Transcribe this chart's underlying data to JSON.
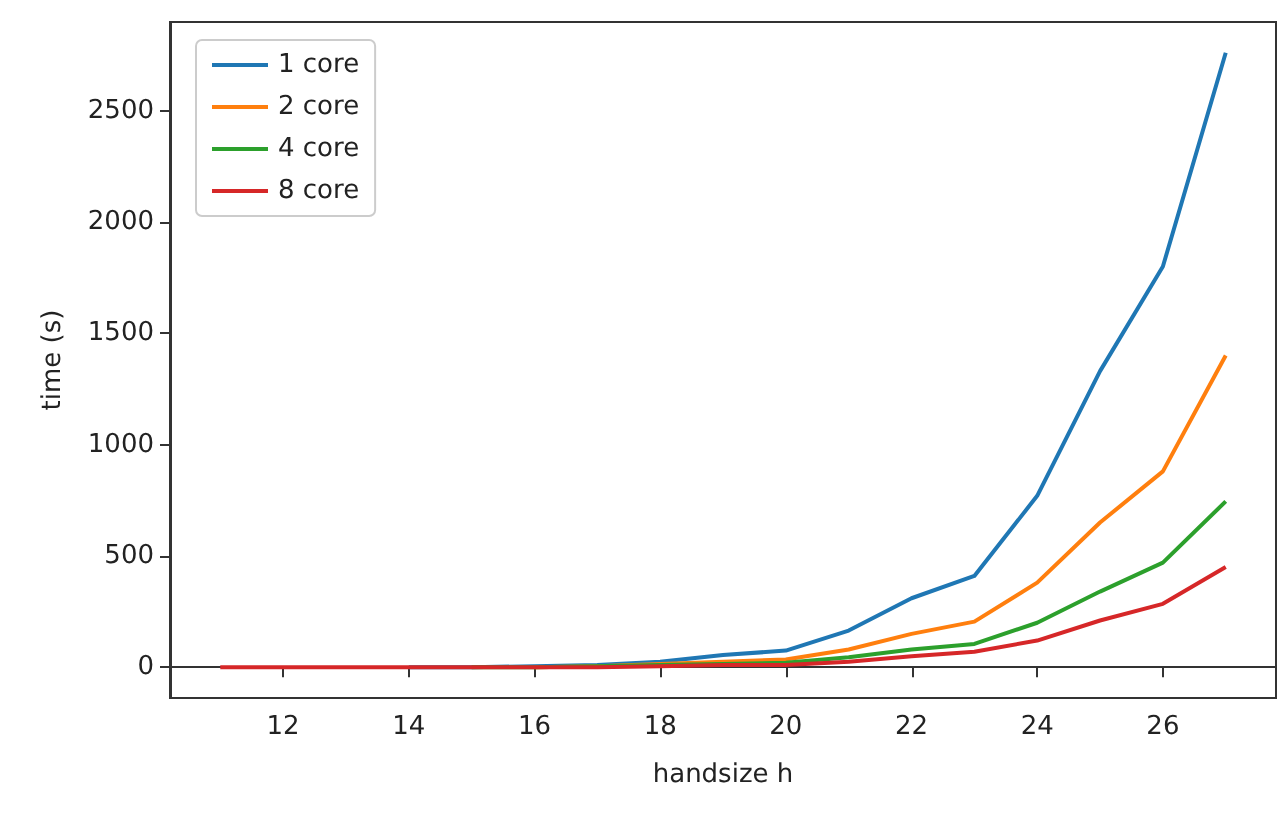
{
  "chart_data": {
    "type": "line",
    "xlabel": "handsize h",
    "ylabel": "time (s)",
    "x": [
      11,
      12,
      13,
      14,
      15,
      16,
      17,
      18,
      19,
      20,
      21,
      22,
      23,
      24,
      25,
      26,
      27
    ],
    "series": [
      {
        "name": "1 core",
        "color": "#1f77b4",
        "values": [
          null,
          null,
          null,
          0,
          0,
          5,
          10,
          25,
          55,
          75,
          165,
          310,
          410,
          770,
          1330,
          1800,
          2760
        ]
      },
      {
        "name": "2 core",
        "color": "#ff7f0e",
        "values": [
          null,
          null,
          null,
          null,
          null,
          0,
          5,
          15,
          25,
          35,
          80,
          150,
          205,
          380,
          650,
          880,
          1400
        ]
      },
      {
        "name": "4 core",
        "color": "#2ca02c",
        "values": [
          null,
          null,
          null,
          null,
          0,
          0,
          5,
          10,
          15,
          20,
          45,
          80,
          105,
          200,
          340,
          470,
          745
        ]
      },
      {
        "name": "8 core",
        "color": "#d62728",
        "values": [
          0,
          0,
          0,
          0,
          0,
          0,
          0,
          5,
          10,
          10,
          25,
          50,
          70,
          120,
          210,
          285,
          450
        ]
      }
    ],
    "xlim": [
      10.2,
      27.8
    ],
    "xticks": [
      12,
      14,
      16,
      18,
      20,
      22,
      24,
      26
    ],
    "ylim": [
      -138,
      2898
    ],
    "yticks": [
      0,
      500,
      1000,
      1500,
      2000,
      2500
    ],
    "legend": "top left",
    "marker": "none",
    "line_style": "solid"
  }
}
